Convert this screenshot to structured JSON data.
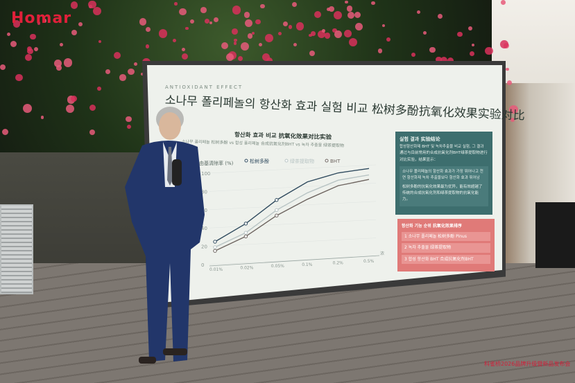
{
  "logo": "Homar",
  "event_caption": "科雀桥2026品牌升级暨新品发布会",
  "slide": {
    "kicker": "ANTIOXIDANT EFFECT",
    "title": "소나무 폴리페놀의 항산화 효과 실험 비교 松树多酚抗氧化效果实验对比",
    "chart_title": "항산화 효과 비교 抗氧化效果对比实验",
    "chart_subtitle": "소나무 폴리페놀 松树多酚 vs 합성 폴리페놀 合成抗氧化剂BHT vs 녹차 추출물 绿茶提取物",
    "result_box": {
      "heading": "실험 결과 实验结论",
      "text1": "합성항산화제 BHT 및 녹차추출물 비교 실험, 그 결과 通过与目前常用的合成抗氧化剂BHT绿茶提取物进行对比实验，结果显示：",
      "text2": "소나무 폴리페놀의 항산화 효과가 가장 뛰어나고 천연 항산화제 녹차 추출물보다 항산화 효과 뛰어남",
      "text3": "松树多酚的抗氧化效果最为优异，能有效超越了传统的合成抗氧化剂和绿茶提取物的抗氧化能力。"
    },
    "ranking_box": {
      "heading": "항산화 기능 순위 抗氧化效果排序",
      "items": [
        "1 소나무 폴리페놀 松树多酚 Pinus",
        "2 녹차 추출물 绿茶提取物",
        "3 합성 항산화 BHT 合成抗氧化剂BHT"
      ]
    },
    "chart_data": {
      "type": "line",
      "ylabel": "自由基清除率 (%)",
      "xlabel": "浓",
      "categories": [
        "0.01%",
        "0.02%",
        "0.05%",
        "0.1%",
        "0.2%",
        "0.5%"
      ],
      "yticks": [
        "0",
        "20",
        "40",
        "60",
        "80",
        "100"
      ],
      "ylim": [
        0,
        100
      ],
      "grid": true,
      "legend_position": "top",
      "series": [
        {
          "name": "松树多酚",
          "values": [
            25,
            43,
            67,
            85,
            93,
            96
          ],
          "color": "#2f4a5e"
        },
        {
          "name": "绿茶提取物",
          "values": [
            19,
            33,
            56,
            73,
            85,
            89
          ],
          "color": "#b8c4c4"
        },
        {
          "name": "BHT",
          "values": [
            15,
            29,
            50,
            66,
            79,
            84
          ],
          "color": "#6e6560"
        }
      ]
    }
  }
}
